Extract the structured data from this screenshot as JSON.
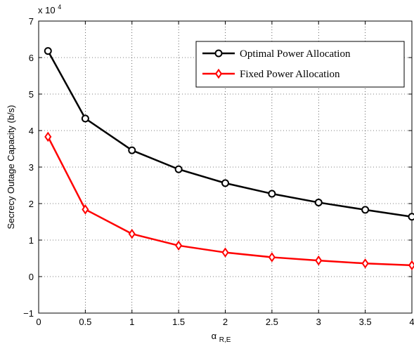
{
  "chart_data": {
    "type": "line",
    "x": [
      0.1,
      0.5,
      1,
      1.5,
      2,
      2.5,
      3,
      3.5,
      4
    ],
    "series": [
      {
        "name": "Optimal Power Allocation",
        "values": [
          61800,
          43300,
          34600,
          29400,
          25600,
          22700,
          20300,
          18300,
          16400
        ],
        "color": "#000000",
        "marker": "circle"
      },
      {
        "name": "Fixed Power Allocation",
        "values": [
          38300,
          18400,
          11700,
          8500,
          6600,
          5300,
          4400,
          3600,
          3100
        ],
        "color": "#ff0000",
        "marker": "diamond"
      }
    ],
    "xlabel_main": "α",
    "xlabel_sub": "R,E",
    "ylabel": "Secrecy Outage Capacity (b/s)",
    "xlim": [
      0,
      4
    ],
    "ylim": [
      -10000,
      70000
    ],
    "xticks": [
      0,
      0.5,
      1,
      1.5,
      2,
      2.5,
      3,
      3.5,
      4
    ],
    "xtick_labels": [
      "0",
      "0.5",
      "1",
      "1.5",
      "2",
      "2.5",
      "3",
      "3.5",
      "4"
    ],
    "yticks": [
      -10000,
      0,
      10000,
      20000,
      30000,
      40000,
      50000,
      60000,
      70000
    ],
    "ytick_labels": [
      "−1",
      "0",
      "1",
      "2",
      "3",
      "4",
      "5",
      "6",
      "7"
    ],
    "y_multiplier_base": "x 10",
    "y_multiplier_exp": "4",
    "grid": true,
    "legend_position": "top-right"
  }
}
